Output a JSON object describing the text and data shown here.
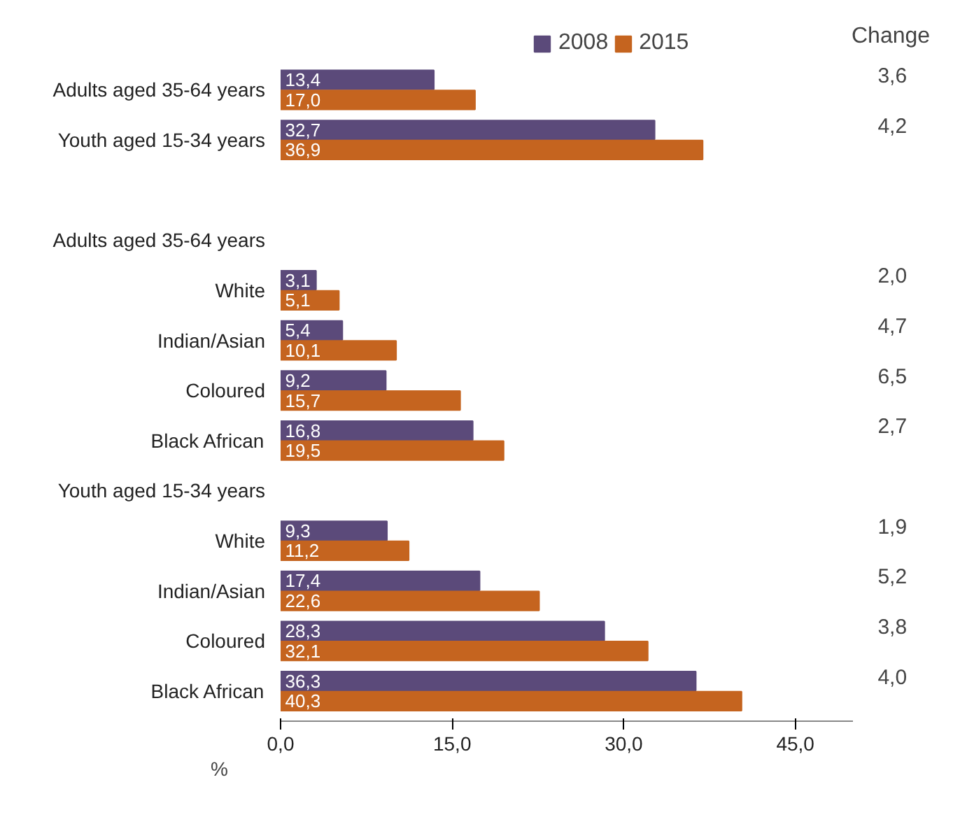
{
  "chart_data": {
    "type": "bar",
    "orientation": "horizontal",
    "xlabel": "%",
    "categories": [
      "Adults aged 35-64 years",
      "Youth aged 15-34 years",
      null,
      "Adults aged 35-64 years",
      "White",
      "Indian/Asian",
      "Coloured",
      "Black African",
      "Youth aged 15-34 years",
      "White",
      "Indian/Asian",
      "Coloured",
      "Black African"
    ],
    "series": [
      {
        "name": "2008",
        "color": "#5b4a7a",
        "values": [
          13.4,
          32.7,
          null,
          null,
          3.1,
          5.4,
          9.2,
          16.8,
          null,
          9.3,
          17.4,
          28.3,
          36.3
        ],
        "value_labels": [
          "13,4",
          "32,7",
          null,
          null,
          "3,1",
          "5,4",
          "9,2",
          "16,8",
          null,
          "9,3",
          "17,4",
          "28,3",
          "36,3"
        ]
      },
      {
        "name": "2015",
        "color": "#c5641f",
        "values": [
          17.0,
          36.9,
          null,
          null,
          5.1,
          10.1,
          15.7,
          19.5,
          null,
          11.2,
          22.6,
          32.1,
          40.3
        ],
        "value_labels": [
          "17,0",
          "36,9",
          null,
          null,
          "5,1",
          "10,1",
          "15,7",
          "19,5",
          null,
          "11,2",
          "22,6",
          "32,1",
          "40,3"
        ]
      }
    ],
    "xlim": [
      0,
      50
    ],
    "xticks": [
      {
        "value": 0,
        "label": "0,0"
      },
      {
        "value": 15,
        "label": "15,0"
      },
      {
        "value": 30,
        "label": "30,0"
      },
      {
        "value": 45,
        "label": "45,0"
      }
    ],
    "annotations": [
      "Change",
      "3,6",
      "4,2",
      "2,0",
      "4,7",
      "6,5",
      "2,7",
      "1,9",
      "5,2",
      "3,8",
      "4,0"
    ],
    "legend": "top right",
    "grid": false
  }
}
